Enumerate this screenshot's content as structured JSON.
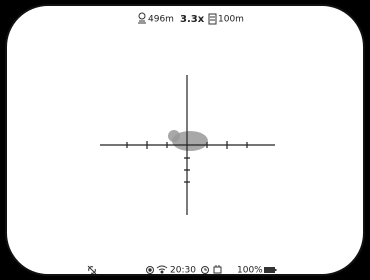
{
  "top_bar": {
    "distance": "496m",
    "zoom": "3.3x",
    "range": "100m"
  },
  "bottom_bar": {
    "time": "20:30",
    "battery": "100%"
  }
}
